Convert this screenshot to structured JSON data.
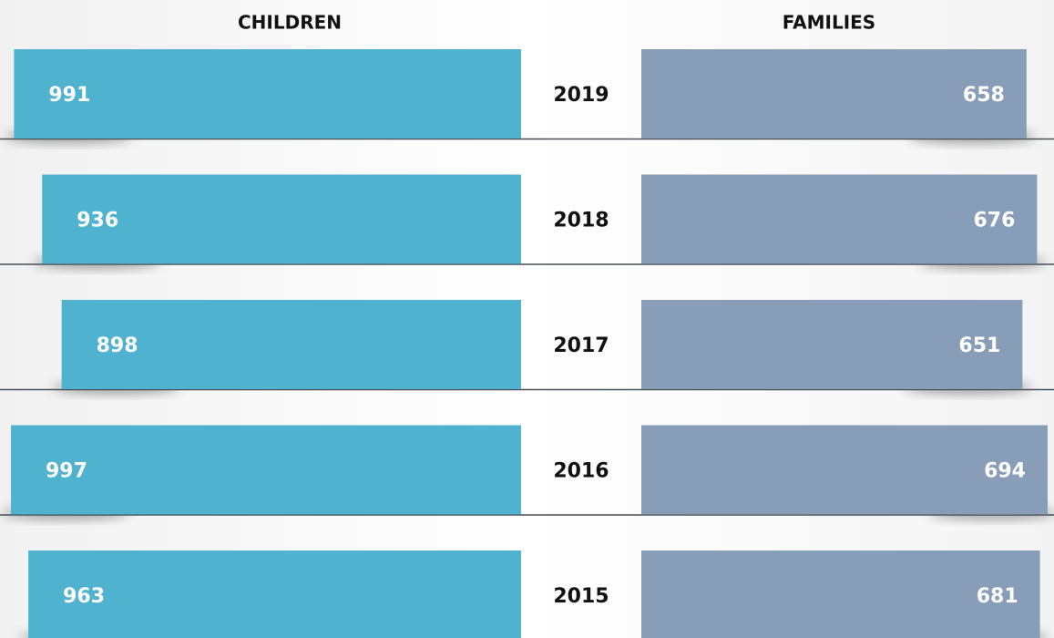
{
  "chart_data": [
    {
      "type": "bar",
      "title": "CHILDREN",
      "categories": [
        "2019",
        "2018",
        "2017",
        "2016",
        "2015"
      ],
      "values": [
        991,
        936,
        898,
        997,
        963
      ],
      "color": "#4fb3cf"
    },
    {
      "type": "bar",
      "title": "FAMILIES",
      "values": [
        658,
        676,
        651,
        694,
        681
      ],
      "color": "#889db8"
    }
  ]
}
